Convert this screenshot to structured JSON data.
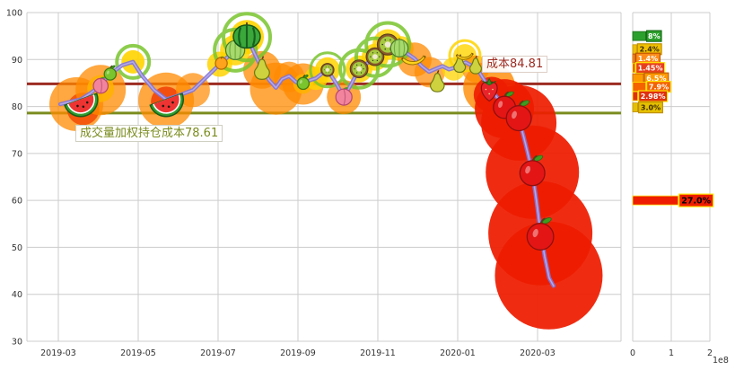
{
  "page": {
    "background": "#ffffff"
  },
  "chart_data": {
    "type": "line",
    "title": "",
    "description": "Stock price line decorated with fruit markers and volume bubbles, two horizontal cost lines, and a right-side volume-by-price distribution panel",
    "y_axis": {
      "min": 30,
      "max": 100,
      "ticks": [
        100,
        90,
        80,
        70,
        60,
        50,
        40,
        30
      ],
      "grid": true
    },
    "x_axis": {
      "ticks": [
        {
          "m": 0,
          "label": "2019-03"
        },
        {
          "m": 2,
          "label": "2019-05"
        },
        {
          "m": 4,
          "label": "2019-07"
        },
        {
          "m": 6,
          "label": "2019-09"
        },
        {
          "m": 8,
          "label": "2019-11"
        },
        {
          "m": 10,
          "label": "2020-01"
        },
        {
          "m": 12,
          "label": "2020-03"
        }
      ],
      "grid": true
    },
    "cost_line": {
      "value": 84.81,
      "label_text": "成本84.81",
      "color": "#9c2b21"
    },
    "vwap_line": {
      "value": 78.61,
      "label_text": "成交量加权持仓成本78.61",
      "color": "#7a8c1e"
    },
    "price_series": {
      "name": "price",
      "color": "#8274d8",
      "points": [
        [
          0.05,
          80.5
        ],
        [
          0.3,
          81
        ],
        [
          0.56,
          81.5
        ],
        [
          0.8,
          82.8
        ],
        [
          1.06,
          84.5
        ],
        [
          1.28,
          86.8
        ],
        [
          1.6,
          88.8
        ],
        [
          1.87,
          89.5
        ],
        [
          2.1,
          86.5
        ],
        [
          2.4,
          83.5
        ],
        [
          2.7,
          81.5
        ],
        [
          3.0,
          82.3
        ],
        [
          3.37,
          83.5
        ],
        [
          3.7,
          86.2
        ],
        [
          4.04,
          89
        ],
        [
          4.25,
          90.6
        ],
        [
          4.43,
          92
        ],
        [
          4.6,
          93.6
        ],
        [
          4.72,
          94.8
        ],
        [
          4.9,
          91.5
        ],
        [
          5.1,
          88
        ],
        [
          5.28,
          85.6
        ],
        [
          5.45,
          84
        ],
        [
          5.6,
          85.8
        ],
        [
          5.78,
          86.5
        ],
        [
          5.95,
          85.2
        ],
        [
          6.13,
          84.6
        ],
        [
          6.3,
          85.6
        ],
        [
          6.45,
          86
        ],
        [
          6.6,
          87
        ],
        [
          6.74,
          87.8
        ],
        [
          6.95,
          85
        ],
        [
          7.15,
          82
        ],
        [
          7.35,
          85
        ],
        [
          7.53,
          88
        ],
        [
          7.75,
          89.3
        ],
        [
          7.93,
          90.6
        ],
        [
          8.1,
          91.8
        ],
        [
          8.25,
          93.2
        ],
        [
          8.4,
          92.8
        ],
        [
          8.58,
          92.3
        ],
        [
          8.75,
          91.2
        ],
        [
          8.92,
          90.2
        ],
        [
          9.1,
          88.6
        ],
        [
          9.28,
          87.4
        ],
        [
          9.45,
          88
        ],
        [
          9.62,
          88.6
        ],
        [
          9.78,
          87.9
        ],
        [
          9.9,
          88.2
        ],
        [
          10.05,
          89
        ],
        [
          10.2,
          89.4
        ],
        [
          10.33,
          88.8
        ],
        [
          10.45,
          88.6
        ],
        [
          10.6,
          86.5
        ],
        [
          10.79,
          84
        ],
        [
          11.0,
          81.8
        ],
        [
          11.17,
          80
        ],
        [
          11.35,
          78.8
        ],
        [
          11.53,
          77.6
        ],
        [
          11.7,
          72
        ],
        [
          11.87,
          66
        ],
        [
          11.97,
          60
        ],
        [
          12.07,
          53.5
        ],
        [
          12.18,
          48
        ],
        [
          12.29,
          43.5
        ],
        [
          12.4,
          41.8
        ]
      ]
    },
    "fruit_markers": [
      {
        "m": 0.56,
        "p": 81.5,
        "type": "watermelon",
        "size": 38
      },
      {
        "m": 1.06,
        "p": 84.4,
        "type": "peach",
        "size": 20
      },
      {
        "m": 1.3,
        "p": 87.0,
        "type": "greenapple",
        "size": 16
      },
      {
        "m": 2.7,
        "p": 81.5,
        "type": "watermelon",
        "size": 38
      },
      {
        "m": 4.08,
        "p": 89.2,
        "type": "orange",
        "size": 16
      },
      {
        "m": 4.43,
        "p": 92.0,
        "type": "melon",
        "size": 24
      },
      {
        "m": 4.72,
        "p": 94.9,
        "type": "watermelon_whole",
        "size": 30
      },
      {
        "m": 5.1,
        "p": 88.0,
        "type": "pear",
        "size": 26
      },
      {
        "m": 6.13,
        "p": 85.0,
        "type": "greenapple",
        "size": 16
      },
      {
        "m": 6.74,
        "p": 87.8,
        "type": "kiwi",
        "size": 16
      },
      {
        "m": 7.15,
        "p": 82.0,
        "type": "peach",
        "size": 22
      },
      {
        "m": 7.53,
        "p": 88.0,
        "type": "kiwi",
        "size": 22
      },
      {
        "m": 7.93,
        "p": 90.6,
        "type": "kiwi",
        "size": 22
      },
      {
        "m": 8.25,
        "p": 93.2,
        "type": "kiwi",
        "size": 26
      },
      {
        "m": 8.54,
        "p": 92.4,
        "type": "melon",
        "size": 22
      },
      {
        "m": 8.9,
        "p": 90.3,
        "type": "banana",
        "size": 28
      },
      {
        "m": 9.49,
        "p": 85.2,
        "type": "pear",
        "size": 24
      },
      {
        "m": 10.05,
        "p": 89.0,
        "type": "pear",
        "size": 20
      },
      {
        "m": 10.18,
        "p": 91.0,
        "type": "banana",
        "size": 20
      },
      {
        "m": 10.45,
        "p": 88.7,
        "type": "pear",
        "size": 20
      },
      {
        "m": 10.79,
        "p": 83.8,
        "type": "strawberry",
        "size": 30
      },
      {
        "m": 11.17,
        "p": 80.0,
        "type": "apple",
        "size": 30
      },
      {
        "m": 11.53,
        "p": 77.7,
        "type": "apple",
        "size": 34
      },
      {
        "m": 11.87,
        "p": 66.0,
        "type": "apple",
        "size": 34
      },
      {
        "m": 12.07,
        "p": 52.5,
        "type": "apple",
        "size": 36
      }
    ],
    "volume_bubbles": [
      {
        "m": 0.45,
        "p": 80.5,
        "r": 30,
        "color": "#ff8a00",
        "a": 0.75
      },
      {
        "m": 0.62,
        "p": 79.5,
        "r": 18,
        "color": "#f04500",
        "a": 0.8
      },
      {
        "m": 1.06,
        "p": 83.5,
        "r": 28,
        "color": "#ff8a00",
        "a": 0.75
      },
      {
        "m": 1.06,
        "p": 83.8,
        "r": 15,
        "color": "#ffb300",
        "a": 0.85
      },
      {
        "m": 1.87,
        "p": 89.5,
        "r": 13,
        "color": "#ffd400",
        "a": 0.9
      },
      {
        "m": 2.7,
        "p": 81.3,
        "r": 31,
        "color": "#ff8a00",
        "a": 0.75
      },
      {
        "m": 2.7,
        "p": 81.0,
        "r": 17,
        "color": "#f03800",
        "a": 0.8
      },
      {
        "m": 3.37,
        "p": 83.5,
        "r": 19,
        "color": "#ff8a00",
        "a": 0.7
      },
      {
        "m": 4.04,
        "p": 89.0,
        "r": 14,
        "color": "#ffd400",
        "a": 0.85
      },
      {
        "m": 4.43,
        "p": 92.0,
        "r": 17,
        "color": "#ffd400",
        "a": 0.85
      },
      {
        "m": 4.72,
        "p": 94.8,
        "r": 19,
        "color": "#ffd400",
        "a": 0.9
      },
      {
        "m": 5.1,
        "p": 87.8,
        "r": 21,
        "color": "#ff8a00",
        "a": 0.75
      },
      {
        "m": 5.45,
        "p": 83.8,
        "r": 29,
        "color": "#ff8a00",
        "a": 0.75
      },
      {
        "m": 5.78,
        "p": 86.3,
        "r": 17,
        "color": "#ff8a00",
        "a": 0.7
      },
      {
        "m": 6.13,
        "p": 84.8,
        "r": 23,
        "color": "#ff8a00",
        "a": 0.75
      },
      {
        "m": 6.13,
        "p": 84.8,
        "r": 11,
        "color": "#ffb300",
        "a": 0.85
      },
      {
        "m": 6.45,
        "p": 86.0,
        "r": 13,
        "color": "#ffd400",
        "a": 0.8
      },
      {
        "m": 6.74,
        "p": 87.8,
        "r": 14,
        "color": "#ffd400",
        "a": 0.85
      },
      {
        "m": 7.15,
        "p": 82.0,
        "r": 19,
        "color": "#ff8a00",
        "a": 0.75
      },
      {
        "m": 7.53,
        "p": 88.0,
        "r": 15,
        "color": "#ffd400",
        "a": 0.85
      },
      {
        "m": 7.93,
        "p": 90.5,
        "r": 15,
        "color": "#ffd400",
        "a": 0.85
      },
      {
        "m": 8.25,
        "p": 93.2,
        "r": 17,
        "color": "#ffd400",
        "a": 0.85
      },
      {
        "m": 8.58,
        "p": 92.3,
        "r": 14,
        "color": "#ffd400",
        "a": 0.8
      },
      {
        "m": 8.92,
        "p": 90.0,
        "r": 19,
        "color": "#ff8a00",
        "a": 0.75
      },
      {
        "m": 9.3,
        "p": 87.3,
        "r": 17,
        "color": "#ff8a00",
        "a": 0.7
      },
      {
        "m": 9.9,
        "p": 88.0,
        "r": 13,
        "color": "#ffd400",
        "a": 0.75
      },
      {
        "m": 10.18,
        "p": 90.8,
        "r": 13,
        "color": "#ffd400",
        "a": 0.8
      },
      {
        "m": 10.45,
        "p": 88.0,
        "r": 15,
        "color": "#ff8a00",
        "a": 0.7
      },
      {
        "m": 10.79,
        "p": 84.0,
        "r": 29,
        "color": "#ff8a00",
        "a": 0.8
      },
      {
        "m": 10.85,
        "p": 82.5,
        "r": 20,
        "color": "#ee1c00",
        "a": 0.9
      },
      {
        "m": 11.17,
        "p": 79.5,
        "r": 33,
        "color": "#ee1c00",
        "a": 0.92
      },
      {
        "m": 11.53,
        "p": 76.5,
        "r": 42,
        "color": "#ee1c00",
        "a": 0.92
      },
      {
        "m": 11.87,
        "p": 66.0,
        "r": 52,
        "color": "#ee1c00",
        "a": 0.93
      },
      {
        "m": 12.07,
        "p": 53.0,
        "r": 58,
        "color": "#ee1c00",
        "a": 0.93
      },
      {
        "m": 12.28,
        "p": 44.0,
        "r": 60,
        "color": "#ee1c00",
        "a": 0.93
      }
    ],
    "halo_rings": [
      {
        "m": 1.87,
        "p": 89.5,
        "r": 18,
        "color": "#7ac52e",
        "w": 4
      },
      {
        "m": 4.43,
        "p": 92.0,
        "r": 23,
        "color": "#7ac52e",
        "w": 4
      },
      {
        "m": 4.72,
        "p": 94.8,
        "r": 26,
        "color": "#7ac52e",
        "w": 4
      },
      {
        "m": 6.74,
        "p": 87.8,
        "r": 19,
        "color": "#7ac52e",
        "w": 3
      },
      {
        "m": 7.53,
        "p": 88.0,
        "r": 21,
        "color": "#7ac52e",
        "w": 4
      },
      {
        "m": 7.93,
        "p": 90.5,
        "r": 21,
        "color": "#7ac52e",
        "w": 4
      },
      {
        "m": 8.25,
        "p": 93.2,
        "r": 24,
        "color": "#7ac52e",
        "w": 4
      },
      {
        "m": 10.18,
        "p": 90.8,
        "r": 17,
        "color": "#ffd400",
        "w": 3
      }
    ],
    "distribution_panel": {
      "x_ticks": [
        {
          "v": 0,
          "label": "0"
        },
        {
          "v": 1,
          "label": "1"
        },
        {
          "v": 2,
          "label": "2"
        }
      ],
      "x_unit": "1e8",
      "bars": [
        {
          "price": 95.0,
          "value_e8": 0.34,
          "pct": "8%",
          "color": "#2ca02c",
          "text_color": "#ffffff",
          "border": "#1a6b1a"
        },
        {
          "price": 92.2,
          "value_e8": 0.1,
          "pct": "2.4%",
          "color": "#f0c000",
          "text_color": "#3a2a00",
          "border": "#c09000"
        },
        {
          "price": 90.2,
          "value_e8": 0.06,
          "pct": "1.4%",
          "color": "#ff8c1a",
          "text_color": "#ffffff",
          "border": "#c05500"
        },
        {
          "price": 88.2,
          "value_e8": 0.06,
          "pct": "1.45%",
          "color": "#e8401c",
          "text_color": "#ffffff",
          "border": "#ffe400"
        },
        {
          "price": 86.0,
          "value_e8": 0.28,
          "pct": "6.5%",
          "color": "#ff9900",
          "text_color": "#ffffff",
          "border": "#c06000"
        },
        {
          "price": 84.2,
          "value_e8": 0.34,
          "pct": "7.9%",
          "color": "#f56200",
          "text_color": "#ffffff",
          "border": "#ffe400"
        },
        {
          "price": 82.2,
          "value_e8": 0.13,
          "pct": "2.98%",
          "color": "#e03010",
          "text_color": "#ffffff",
          "border": "#ffe400"
        },
        {
          "price": 79.8,
          "value_e8": 0.13,
          "pct": "3.0%",
          "color": "#e5c000",
          "text_color": "#3a2a00",
          "border": "#c09000"
        },
        {
          "price": 60.0,
          "value_e8": 1.18,
          "pct": "27.0%",
          "color": "#ee1c00",
          "text_color": "#000000",
          "border": "#ffe400",
          "emph": true
        }
      ]
    }
  }
}
